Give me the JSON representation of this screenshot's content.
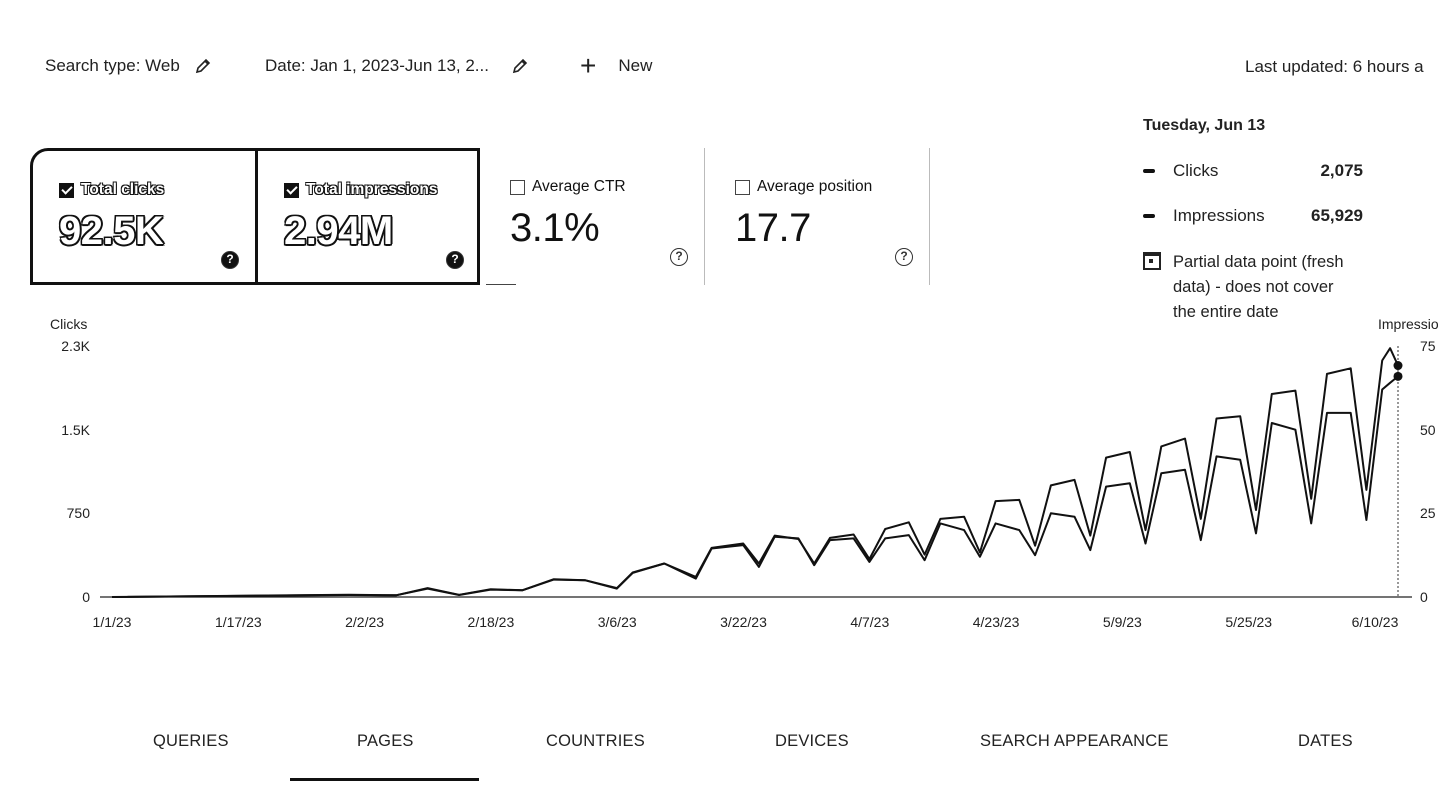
{
  "filters": {
    "search_type": "Search type: Web",
    "date": "Date: Jan 1, 2023-Jun 13, 2...",
    "new_label": "New"
  },
  "last_updated": "Last updated: 6 hours a",
  "metrics": [
    {
      "label": "Total clicks",
      "value": "92.5K",
      "checked": true
    },
    {
      "label": "Total impressions",
      "value": "2.94M",
      "checked": true
    },
    {
      "label": "Average CTR",
      "value": "3.1%",
      "checked": false
    },
    {
      "label": "Average position",
      "value": "17.7",
      "checked": false
    }
  ],
  "tooltip": {
    "date": "Tuesday, Jun 13",
    "rows": [
      {
        "label": "Clicks",
        "value": "2,075"
      },
      {
        "label": "Impressions",
        "value": "65,929"
      }
    ],
    "note_line1": "Partial data point (fresh",
    "note_line2": "data) - does not cover",
    "note_line3": "the entire date"
  },
  "chart_data": {
    "type": "line",
    "left_axis_title": "Clicks",
    "right_axis_title": "Impressio",
    "left_ticks": [
      "2.3K",
      "1.5K",
      "750",
      "0"
    ],
    "right_ticks": [
      "75",
      "50",
      "25",
      "0"
    ],
    "x_ticks": [
      "1/1/23",
      "1/17/23",
      "2/2/23",
      "2/18/23",
      "3/6/23",
      "3/22/23",
      "4/7/23",
      "4/23/23",
      "5/9/23",
      "5/25/23",
      "6/10/23"
    ],
    "ylim_left": [
      0,
      2250
    ],
    "ylim_right": [
      0,
      75000
    ],
    "grid": false,
    "series": [
      {
        "name": "Clicks",
        "axis": "left",
        "key_points": [
          [
            0,
            0
          ],
          [
            30,
            20
          ],
          [
            36,
            15
          ],
          [
            40,
            80
          ],
          [
            44,
            20
          ],
          [
            48,
            70
          ],
          [
            52,
            60
          ],
          [
            56,
            160
          ],
          [
            60,
            150
          ],
          [
            64,
            80
          ],
          [
            66,
            220
          ],
          [
            70,
            300
          ],
          [
            74,
            180
          ],
          [
            76,
            440
          ],
          [
            80,
            480
          ],
          [
            82,
            300
          ],
          [
            84,
            550
          ],
          [
            87,
            520
          ],
          [
            89,
            300
          ],
          [
            91,
            530
          ],
          [
            94,
            560
          ],
          [
            96,
            340
          ],
          [
            98,
            610
          ],
          [
            101,
            670
          ],
          [
            103,
            380
          ],
          [
            105,
            700
          ],
          [
            108,
            720
          ],
          [
            110,
            400
          ],
          [
            112,
            860
          ],
          [
            115,
            870
          ],
          [
            117,
            460
          ],
          [
            119,
            1000
          ],
          [
            122,
            1050
          ],
          [
            124,
            550
          ],
          [
            126,
            1250
          ],
          [
            129,
            1300
          ],
          [
            131,
            600
          ],
          [
            133,
            1350
          ],
          [
            136,
            1420
          ],
          [
            138,
            700
          ],
          [
            140,
            1600
          ],
          [
            143,
            1620
          ],
          [
            145,
            780
          ],
          [
            147,
            1820
          ],
          [
            150,
            1850
          ],
          [
            152,
            880
          ],
          [
            154,
            2000
          ],
          [
            157,
            2050
          ],
          [
            159,
            960
          ],
          [
            161,
            2120
          ],
          [
            162,
            2230
          ],
          [
            163,
            2075
          ]
        ]
      },
      {
        "name": "Impressions",
        "axis": "right",
        "key_points": [
          [
            0,
            0
          ],
          [
            30,
            600
          ],
          [
            36,
            500
          ],
          [
            40,
            2500
          ],
          [
            44,
            600
          ],
          [
            48,
            2200
          ],
          [
            52,
            2000
          ],
          [
            56,
            5200
          ],
          [
            60,
            5000
          ],
          [
            64,
            2500
          ],
          [
            66,
            7200
          ],
          [
            70,
            10000
          ],
          [
            74,
            5500
          ],
          [
            76,
            14500
          ],
          [
            80,
            15500
          ],
          [
            82,
            9000
          ],
          [
            84,
            18000
          ],
          [
            87,
            17500
          ],
          [
            89,
            9500
          ],
          [
            91,
            17000
          ],
          [
            94,
            17500
          ],
          [
            96,
            10500
          ],
          [
            98,
            17500
          ],
          [
            101,
            18500
          ],
          [
            103,
            11000
          ],
          [
            105,
            22000
          ],
          [
            108,
            20000
          ],
          [
            110,
            12000
          ],
          [
            112,
            22000
          ],
          [
            115,
            20000
          ],
          [
            117,
            12500
          ],
          [
            119,
            25000
          ],
          [
            122,
            24000
          ],
          [
            124,
            14000
          ],
          [
            126,
            33000
          ],
          [
            129,
            34000
          ],
          [
            131,
            16000
          ],
          [
            133,
            37000
          ],
          [
            136,
            38000
          ],
          [
            138,
            17000
          ],
          [
            140,
            42000
          ],
          [
            143,
            41000
          ],
          [
            145,
            19000
          ],
          [
            147,
            52000
          ],
          [
            150,
            50000
          ],
          [
            152,
            22000
          ],
          [
            154,
            55000
          ],
          [
            157,
            55000
          ],
          [
            159,
            23000
          ],
          [
            161,
            62000
          ],
          [
            162,
            64000
          ],
          [
            163,
            65929
          ]
        ]
      }
    ]
  },
  "tabs": [
    "QUERIES",
    "PAGES",
    "COUNTRIES",
    "DEVICES",
    "SEARCH APPEARANCE",
    "DATES"
  ],
  "active_tab": "PAGES"
}
